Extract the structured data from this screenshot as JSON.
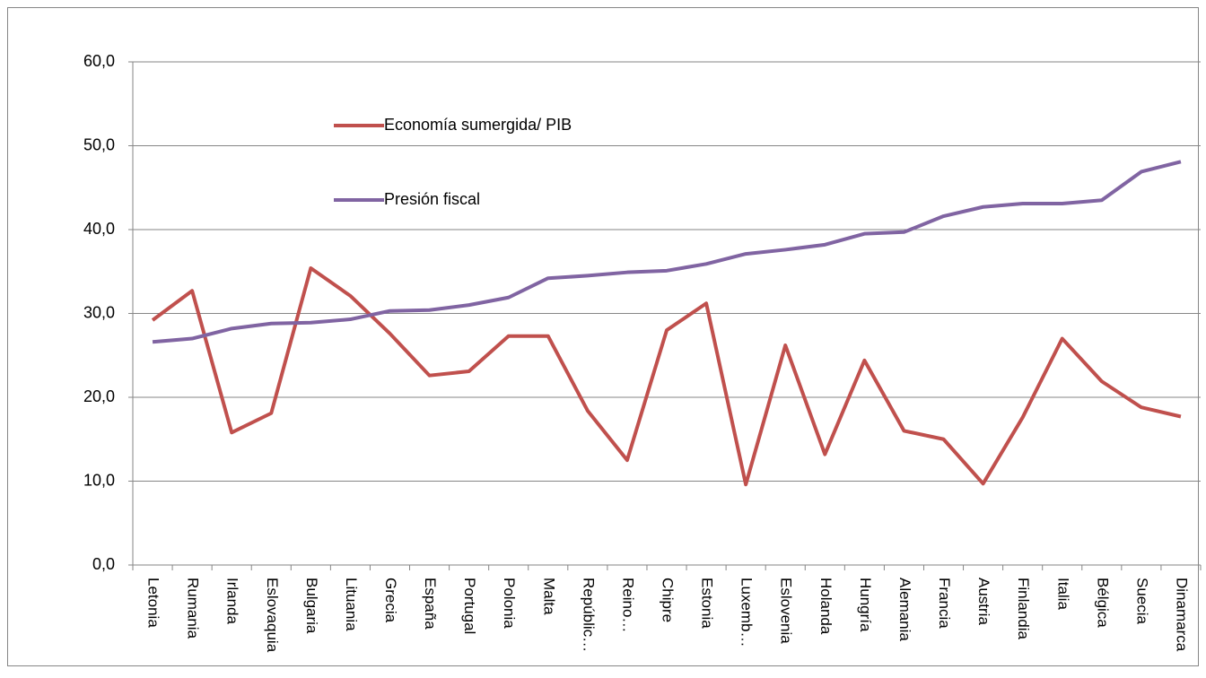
{
  "chart_data": {
    "type": "line",
    "categories": [
      "Letonia",
      "Rumania",
      "Irlanda",
      "Eslovaquia",
      "Bulgaria",
      "Lituania",
      "Grecia",
      "España",
      "Portugal",
      "Polonia",
      "Malta",
      "Repúblic…",
      "Reino…",
      "Chipre",
      "Estonia",
      "Luxemb…",
      "Eslovenia",
      "Holanda",
      "Hungría",
      "Alemania",
      "Francia",
      "Austria",
      "Finlandia",
      "Italia",
      "Bélgica",
      "Suecia",
      "Dinamarca"
    ],
    "series": [
      {
        "name": "Economía sumergida/ PIB",
        "color": "#c0504d",
        "values": [
          29.2,
          32.7,
          15.8,
          18.1,
          35.4,
          32.1,
          27.6,
          22.6,
          23.1,
          27.3,
          27.3,
          18.4,
          12.5,
          28.0,
          31.2,
          9.6,
          26.2,
          13.2,
          24.4,
          16.0,
          15.0,
          9.7,
          17.6,
          27.0,
          21.9,
          18.8,
          17.7
        ]
      },
      {
        "name": "Presión fiscal",
        "color": "#8064a2",
        "values": [
          26.6,
          27.0,
          28.2,
          28.8,
          28.9,
          29.3,
          30.3,
          30.4,
          31.0,
          31.9,
          34.2,
          34.5,
          34.9,
          35.1,
          35.9,
          37.1,
          37.6,
          38.2,
          39.5,
          39.7,
          41.6,
          42.7,
          43.1,
          43.1,
          43.5,
          46.9,
          48.1
        ]
      }
    ],
    "ylim": [
      0,
      60
    ],
    "yticks": [
      {
        "value": 0,
        "label": "0,0"
      },
      {
        "value": 10,
        "label": "10,0"
      },
      {
        "value": 20,
        "label": "20,0"
      },
      {
        "value": 30,
        "label": "30,0"
      },
      {
        "value": 40,
        "label": "40,0"
      },
      {
        "value": 50,
        "label": "50,0"
      },
      {
        "value": 60,
        "label": "60,0"
      }
    ],
    "grid": true,
    "legend": "upper left"
  }
}
